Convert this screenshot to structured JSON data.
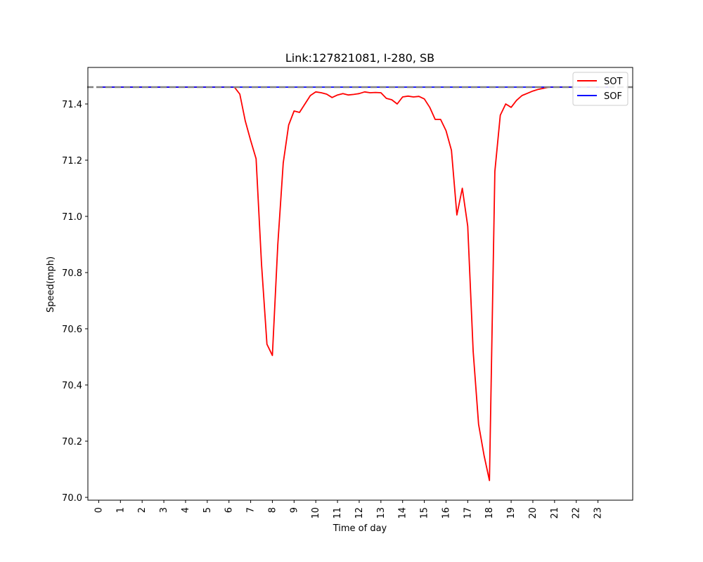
{
  "chart_data": {
    "type": "line",
    "title": "Link:127821081, I-280, SB",
    "xlabel": "Time of day",
    "ylabel": "Speed(mph)",
    "xlim": [
      -0.5,
      24.6
    ],
    "ylim": [
      69.99,
      71.53
    ],
    "xticks": [
      0,
      1,
      2,
      3,
      4,
      5,
      6,
      7,
      8,
      9,
      10,
      11,
      12,
      13,
      14,
      15,
      16,
      17,
      18,
      19,
      20,
      21,
      22,
      23
    ],
    "yticks": [
      70.0,
      70.2,
      70.4,
      70.6,
      70.8,
      71.0,
      71.2,
      71.4
    ],
    "ytick_labels": [
      "70.0",
      "70.2",
      "70.4",
      "70.6",
      "70.8",
      "71.0",
      "71.2",
      "71.4"
    ],
    "legend_position": "top-right",
    "reference_line": {
      "y": 71.46,
      "color": "#808080",
      "style": "dashed"
    },
    "series": [
      {
        "name": "SOT",
        "color": "#ff0000",
        "x": [
          0,
          0.25,
          0.5,
          0.75,
          1,
          1.25,
          1.5,
          1.75,
          2,
          2.25,
          2.5,
          2.75,
          3,
          3.25,
          3.5,
          3.75,
          4,
          4.25,
          4.5,
          4.75,
          5,
          5.25,
          5.5,
          5.75,
          6,
          6.25,
          6.5,
          6.75,
          7,
          7.25,
          7.5,
          7.75,
          8,
          8.25,
          8.5,
          8.75,
          9,
          9.25,
          9.5,
          9.75,
          10,
          10.25,
          10.5,
          10.75,
          11,
          11.25,
          11.5,
          11.75,
          12,
          12.25,
          12.5,
          12.75,
          13,
          13.25,
          13.5,
          13.75,
          14,
          14.25,
          14.5,
          14.75,
          15,
          15.25,
          15.5,
          15.75,
          16,
          16.25,
          16.5,
          16.75,
          17,
          17.25,
          17.5,
          17.75,
          18,
          18.25,
          18.5,
          18.75,
          19,
          19.25,
          19.5,
          19.75,
          20,
          20.25,
          20.5,
          20.75,
          21,
          21.25,
          21.5,
          21.75,
          22,
          22.25,
          22.5,
          22.75,
          23,
          23.25,
          23.5,
          23.75
        ],
        "values": [
          71.46,
          71.46,
          71.46,
          71.46,
          71.46,
          71.46,
          71.46,
          71.46,
          71.46,
          71.46,
          71.46,
          71.46,
          71.46,
          71.46,
          71.46,
          71.46,
          71.46,
          71.46,
          71.46,
          71.46,
          71.46,
          71.46,
          71.46,
          71.46,
          71.46,
          71.46,
          71.435,
          71.34,
          71.27,
          71.205,
          70.83,
          70.545,
          70.505,
          70.9,
          71.19,
          71.325,
          71.375,
          71.37,
          71.4,
          71.43,
          71.443,
          71.44,
          71.435,
          71.423,
          71.432,
          71.437,
          71.432,
          71.434,
          71.437,
          71.443,
          71.44,
          71.441,
          71.44,
          71.42,
          71.415,
          71.4,
          71.425,
          71.428,
          71.425,
          71.427,
          71.418,
          71.388,
          71.345,
          71.345,
          71.305,
          71.235,
          71.005,
          71.1,
          70.965,
          70.52,
          70.26,
          70.15,
          70.06,
          71.16,
          71.36,
          71.4,
          71.388,
          71.413,
          71.43,
          71.438,
          71.446,
          71.452,
          71.456,
          71.46,
          71.46,
          71.46,
          71.46,
          71.46,
          71.46,
          71.46,
          71.46,
          71.46,
          71.46,
          71.46,
          71.46,
          71.46
        ]
      },
      {
        "name": "SOF",
        "color": "#0000ff",
        "x": [
          0,
          23.75
        ],
        "values": [
          71.46,
          71.46
        ]
      }
    ]
  }
}
